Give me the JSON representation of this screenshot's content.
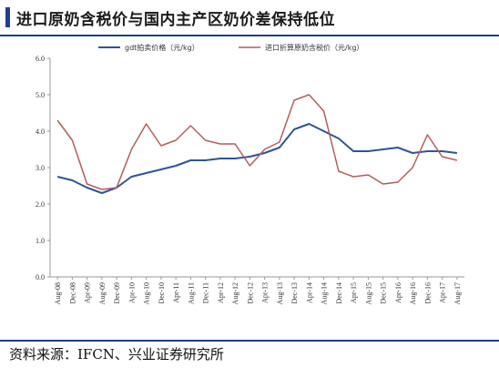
{
  "title": "进口原奶含税价与国内主产区奶价差保持低位",
  "source": "资料来源：IFCN、兴业证券研究所",
  "chart_data": {
    "type": "line",
    "title": "进口原奶含税价与国内主产区奶价差保持低位",
    "ylim": [
      0,
      6
    ],
    "yticks": [
      "0.0",
      "1.0",
      "2.0",
      "3.0",
      "4.0",
      "5.0",
      "6.0"
    ],
    "grid": false,
    "legend": "top",
    "x": [
      "Aug-08",
      "Dec-08",
      "Apr-09",
      "Aug-09",
      "Dec-09",
      "Apr-10",
      "Aug-10",
      "Dec-10",
      "Apr-11",
      "Aug-11",
      "Dec-11",
      "Apr-12",
      "Aug-12",
      "Dec-12",
      "Apr-13",
      "Aug-13",
      "Dec-13",
      "Apr-14",
      "Aug-14",
      "Dec-14",
      "Apr-15",
      "Aug-15",
      "Dec-15",
      "Apr-16",
      "Aug-16",
      "Dec-16",
      "Apr-17",
      "Aug-17"
    ],
    "series": [
      {
        "name": "gdt拍卖价格（元/kg）",
        "color": "#2e5597",
        "values": [
          2.75,
          2.65,
          2.45,
          2.3,
          2.45,
          2.75,
          2.85,
          2.95,
          3.05,
          3.2,
          3.2,
          3.25,
          3.25,
          3.3,
          3.4,
          3.55,
          4.05,
          4.2,
          4.0,
          3.8,
          3.45,
          3.45,
          3.5,
          3.55,
          3.4,
          3.45,
          3.45,
          3.4
        ]
      },
      {
        "name": "进口折算原奶含税价（元/kg）",
        "color": "#b65c5c",
        "values": [
          4.3,
          3.75,
          2.55,
          2.4,
          2.45,
          3.5,
          4.2,
          3.6,
          3.75,
          4.15,
          3.75,
          3.65,
          3.65,
          3.05,
          3.5,
          3.7,
          4.85,
          5.0,
          4.55,
          2.9,
          2.75,
          2.8,
          2.55,
          2.6,
          3.0,
          3.9,
          3.3,
          3.2
        ]
      }
    ]
  }
}
